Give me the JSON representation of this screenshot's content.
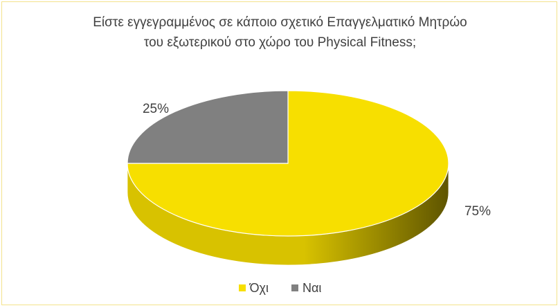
{
  "chart_data": {
    "type": "pie",
    "title_lines": [
      "Είστε εγγεγραμμένος σε κάποιο σχετικό Επαγγελματικό Μητρώο",
      "του εξωτερικού στο χώρο του Physical Fitness;"
    ],
    "slices": [
      {
        "label": "Όχι",
        "value": 75,
        "display": "75%",
        "color": "#f7df00",
        "side_dark": "#5e5400",
        "side_light": "#d8c200"
      },
      {
        "label": "Ναι",
        "value": 25,
        "display": "25%",
        "color": "#808080",
        "side_dark": "#4a4a4a",
        "side_light": "#707070"
      }
    ],
    "legend_position": "bottom",
    "style": "3d"
  },
  "colors": {
    "border": "#f3e28a",
    "text": "#404040"
  }
}
